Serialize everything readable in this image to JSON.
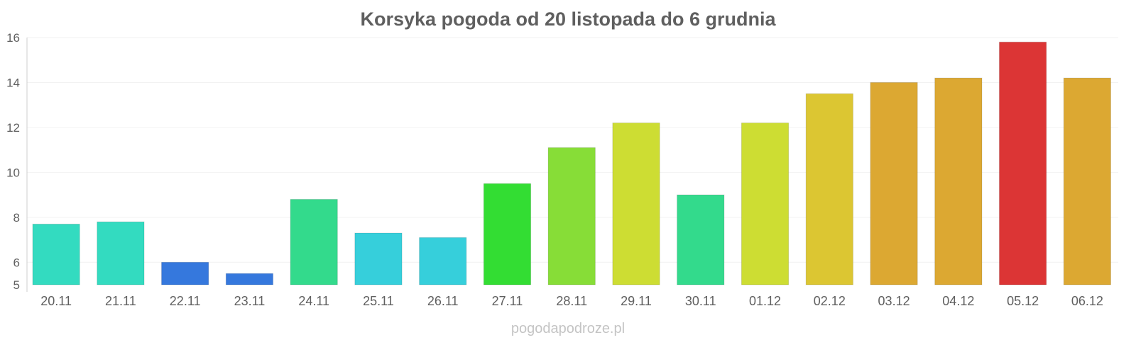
{
  "chart_data": {
    "type": "bar",
    "title": "Korsyka pogoda od 20 listopada do 6 grudnia",
    "categories": [
      "20.11",
      "21.11",
      "22.11",
      "23.11",
      "24.11",
      "25.11",
      "26.11",
      "27.11",
      "28.11",
      "29.11",
      "30.11",
      "01.12",
      "02.12",
      "03.12",
      "04.12",
      "05.12",
      "06.12"
    ],
    "values": [
      7.7,
      7.8,
      6.0,
      5.5,
      8.8,
      7.3,
      7.1,
      9.5,
      11.1,
      12.2,
      9.0,
      12.2,
      13.5,
      14.0,
      14.2,
      15.8,
      14.2
    ],
    "colors": [
      "#33dbc0",
      "#33dbc0",
      "#3578dd",
      "#3578dd",
      "#33da8c",
      "#36cfdb",
      "#36cfdb",
      "#33dd33",
      "#87dd37",
      "#cddd33",
      "#33da8c",
      "#cddd33",
      "#dcc632",
      "#dca832",
      "#dca832",
      "#dc3535",
      "#dca832"
    ],
    "ylim": [
      5,
      16
    ],
    "yticks": [
      5,
      6,
      8,
      10,
      12,
      14,
      16
    ],
    "grid": true,
    "legend": "none"
  },
  "watermark": "pogodapodroze.pl"
}
